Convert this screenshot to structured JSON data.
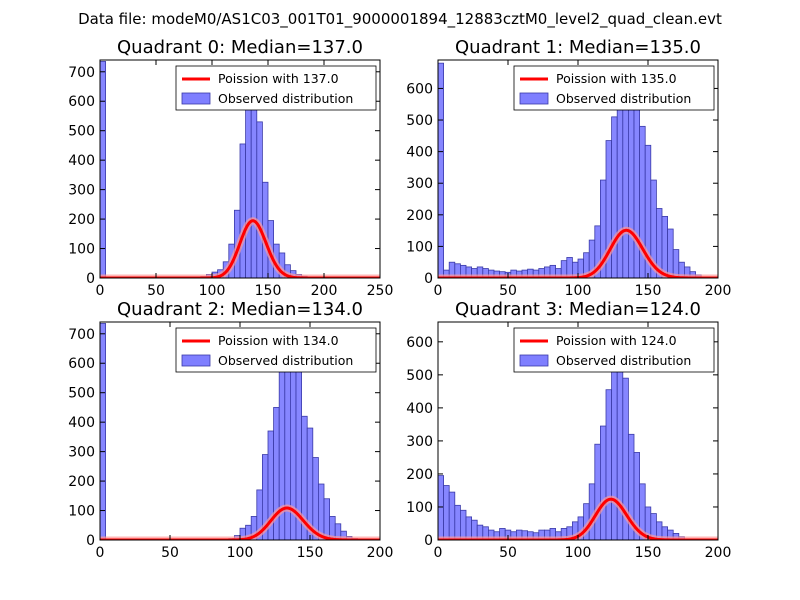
{
  "figure": {
    "suptitle": "Data file: modeM0/AS1C03_001T01_9000001894_12883cztM0_level2_quad_clean.evt"
  },
  "colors": {
    "bar_fill": "#7f7fff",
    "bar_edge": "#3a3aa8",
    "fit_line": "#ff0000",
    "fit_glow": "#ff9999"
  },
  "chart_data": [
    {
      "type": "bar",
      "title": "Quadrant 0: Median=137.0",
      "xlim": [
        0,
        250
      ],
      "ylim": [
        0,
        740
      ],
      "xticks": [
        0,
        50,
        100,
        150,
        200,
        250
      ],
      "yticks": [
        0,
        100,
        200,
        300,
        400,
        500,
        600,
        700
      ],
      "legend": {
        "location": "top-right",
        "fit_label": "Poission with 137.0",
        "hist_label": "Observed distribution"
      },
      "bin_width": 5,
      "bins": [
        {
          "x": 0,
          "count": 735
        },
        {
          "x": 90,
          "count": 5
        },
        {
          "x": 95,
          "count": 12
        },
        {
          "x": 100,
          "count": 20
        },
        {
          "x": 105,
          "count": 28
        },
        {
          "x": 110,
          "count": 55
        },
        {
          "x": 115,
          "count": 115
        },
        {
          "x": 120,
          "count": 230
        },
        {
          "x": 125,
          "count": 455
        },
        {
          "x": 130,
          "count": 630
        },
        {
          "x": 135,
          "count": 620
        },
        {
          "x": 140,
          "count": 530
        },
        {
          "x": 145,
          "count": 325
        },
        {
          "x": 150,
          "count": 195
        },
        {
          "x": 155,
          "count": 115
        },
        {
          "x": 160,
          "count": 85
        },
        {
          "x": 165,
          "count": 45
        },
        {
          "x": 170,
          "count": 25
        },
        {
          "x": 175,
          "count": 12
        },
        {
          "x": 180,
          "count": 6
        },
        {
          "x": 185,
          "count": 3
        }
      ],
      "poisson_mean": 137.0,
      "poisson_scale": 5700
    },
    {
      "type": "bar",
      "title": "Quadrant 1: Median=135.0",
      "xlim": [
        0,
        200
      ],
      "ylim": [
        0,
        690
      ],
      "xticks": [
        0,
        50,
        100,
        150,
        200
      ],
      "yticks": [
        0,
        100,
        200,
        300,
        400,
        500,
        600
      ],
      "legend": {
        "location": "top-right",
        "fit_label": "Poission with 135.0",
        "hist_label": "Observed distribution"
      },
      "bin_width": 4,
      "bins": [
        {
          "x": 0,
          "count": 680
        },
        {
          "x": 4,
          "count": 25
        },
        {
          "x": 8,
          "count": 50
        },
        {
          "x": 12,
          "count": 45
        },
        {
          "x": 16,
          "count": 40
        },
        {
          "x": 20,
          "count": 35
        },
        {
          "x": 24,
          "count": 30
        },
        {
          "x": 28,
          "count": 35
        },
        {
          "x": 32,
          "count": 30
        },
        {
          "x": 36,
          "count": 25
        },
        {
          "x": 40,
          "count": 22
        },
        {
          "x": 44,
          "count": 20
        },
        {
          "x": 48,
          "count": 18
        },
        {
          "x": 52,
          "count": 25
        },
        {
          "x": 56,
          "count": 22
        },
        {
          "x": 60,
          "count": 25
        },
        {
          "x": 64,
          "count": 28
        },
        {
          "x": 68,
          "count": 25
        },
        {
          "x": 72,
          "count": 30
        },
        {
          "x": 76,
          "count": 35
        },
        {
          "x": 80,
          "count": 40
        },
        {
          "x": 84,
          "count": 30
        },
        {
          "x": 88,
          "count": 55
        },
        {
          "x": 92,
          "count": 65
        },
        {
          "x": 96,
          "count": 50
        },
        {
          "x": 100,
          "count": 60
        },
        {
          "x": 104,
          "count": 80
        },
        {
          "x": 108,
          "count": 120
        },
        {
          "x": 112,
          "count": 165
        },
        {
          "x": 116,
          "count": 310
        },
        {
          "x": 120,
          "count": 435
        },
        {
          "x": 124,
          "count": 510
        },
        {
          "x": 128,
          "count": 555
        },
        {
          "x": 132,
          "count": 655
        },
        {
          "x": 136,
          "count": 630
        },
        {
          "x": 140,
          "count": 600
        },
        {
          "x": 144,
          "count": 480
        },
        {
          "x": 148,
          "count": 420
        },
        {
          "x": 152,
          "count": 310
        },
        {
          "x": 156,
          "count": 220
        },
        {
          "x": 160,
          "count": 195
        },
        {
          "x": 164,
          "count": 155
        },
        {
          "x": 168,
          "count": 90
        },
        {
          "x": 172,
          "count": 50
        },
        {
          "x": 176,
          "count": 35
        },
        {
          "x": 180,
          "count": 20
        },
        {
          "x": 184,
          "count": 10
        }
      ],
      "poisson_mean": 135.0,
      "poisson_scale": 4400
    },
    {
      "type": "bar",
      "title": "Quadrant 2: Median=134.0",
      "xlim": [
        0,
        200
      ],
      "ylim": [
        0,
        740
      ],
      "xticks": [
        0,
        50,
        100,
        150,
        200
      ],
      "yticks": [
        0,
        100,
        200,
        300,
        400,
        500,
        600,
        700
      ],
      "legend": {
        "location": "top-right",
        "fit_label": "Poission with 134.0",
        "hist_label": "Observed distribution"
      },
      "bin_width": 4,
      "bins": [
        {
          "x": 0,
          "count": 735
        },
        {
          "x": 92,
          "count": 5
        },
        {
          "x": 96,
          "count": 15
        },
        {
          "x": 100,
          "count": 40
        },
        {
          "x": 104,
          "count": 50
        },
        {
          "x": 108,
          "count": 80
        },
        {
          "x": 112,
          "count": 170
        },
        {
          "x": 116,
          "count": 290
        },
        {
          "x": 120,
          "count": 370
        },
        {
          "x": 124,
          "count": 450
        },
        {
          "x": 128,
          "count": 650
        },
        {
          "x": 132,
          "count": 645
        },
        {
          "x": 136,
          "count": 680
        },
        {
          "x": 140,
          "count": 600
        },
        {
          "x": 144,
          "count": 420
        },
        {
          "x": 148,
          "count": 380
        },
        {
          "x": 152,
          "count": 280
        },
        {
          "x": 156,
          "count": 190
        },
        {
          "x": 160,
          "count": 140
        },
        {
          "x": 164,
          "count": 80
        },
        {
          "x": 168,
          "count": 55
        },
        {
          "x": 172,
          "count": 30
        },
        {
          "x": 176,
          "count": 12
        },
        {
          "x": 180,
          "count": 5
        }
      ],
      "poisson_mean": 134.0,
      "poisson_scale": 3150
    },
    {
      "type": "bar",
      "title": "Quadrant 3: Median=124.0",
      "xlim": [
        0,
        200
      ],
      "ylim": [
        0,
        660
      ],
      "xticks": [
        0,
        50,
        100,
        150,
        200
      ],
      "yticks": [
        0,
        100,
        200,
        300,
        400,
        500,
        600
      ],
      "legend": {
        "location": "top-right",
        "fit_label": "Poission with 124.0",
        "hist_label": "Observed distribution"
      },
      "bin_width": 4,
      "bins": [
        {
          "x": 0,
          "count": 195
        },
        {
          "x": 4,
          "count": 165
        },
        {
          "x": 8,
          "count": 145
        },
        {
          "x": 12,
          "count": 105
        },
        {
          "x": 16,
          "count": 90
        },
        {
          "x": 20,
          "count": 70
        },
        {
          "x": 24,
          "count": 60
        },
        {
          "x": 28,
          "count": 45
        },
        {
          "x": 32,
          "count": 40
        },
        {
          "x": 36,
          "count": 30
        },
        {
          "x": 40,
          "count": 25
        },
        {
          "x": 44,
          "count": 35
        },
        {
          "x": 48,
          "count": 30
        },
        {
          "x": 52,
          "count": 25
        },
        {
          "x": 56,
          "count": 30
        },
        {
          "x": 60,
          "count": 28
        },
        {
          "x": 64,
          "count": 25
        },
        {
          "x": 68,
          "count": 22
        },
        {
          "x": 72,
          "count": 30
        },
        {
          "x": 76,
          "count": 30
        },
        {
          "x": 80,
          "count": 35
        },
        {
          "x": 84,
          "count": 25
        },
        {
          "x": 88,
          "count": 35
        },
        {
          "x": 92,
          "count": 40
        },
        {
          "x": 96,
          "count": 55
        },
        {
          "x": 100,
          "count": 70
        },
        {
          "x": 104,
          "count": 110
        },
        {
          "x": 108,
          "count": 170
        },
        {
          "x": 112,
          "count": 290
        },
        {
          "x": 116,
          "count": 345
        },
        {
          "x": 120,
          "count": 455
        },
        {
          "x": 124,
          "count": 625
        },
        {
          "x": 128,
          "count": 560
        },
        {
          "x": 132,
          "count": 490
        },
        {
          "x": 136,
          "count": 320
        },
        {
          "x": 140,
          "count": 265
        },
        {
          "x": 144,
          "count": 170
        },
        {
          "x": 148,
          "count": 100
        },
        {
          "x": 152,
          "count": 80
        },
        {
          "x": 156,
          "count": 55
        },
        {
          "x": 160,
          "count": 40
        },
        {
          "x": 164,
          "count": 30
        },
        {
          "x": 168,
          "count": 20
        },
        {
          "x": 172,
          "count": 10
        }
      ],
      "poisson_mean": 124.0,
      "poisson_scale": 3450
    }
  ]
}
